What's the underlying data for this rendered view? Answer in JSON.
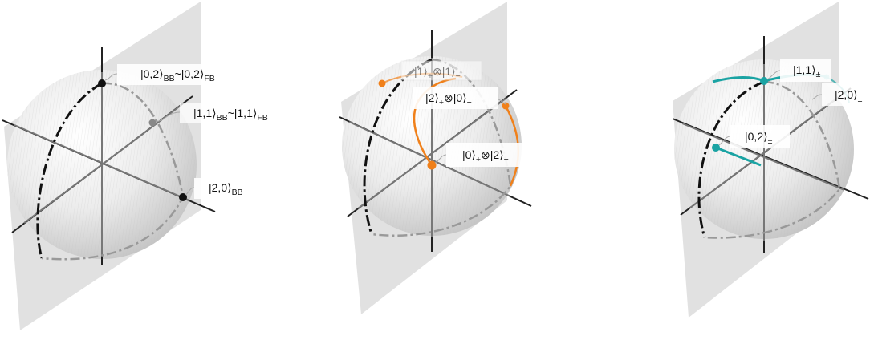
{
  "panels": [
    {
      "labels": {
        "a": {
          "main": "|0,2⟩",
          "sub": "BB",
          "main2": "~|0,2⟩",
          "sub2": "FB"
        },
        "b": {
          "main": "|1,1⟩",
          "sub": "BB",
          "main2": "~|1,1⟩",
          "sub2": "FB"
        },
        "c": {
          "main": "|2,0⟩",
          "sub": "BB"
        }
      },
      "colors": {
        "state": "#111111"
      }
    },
    {
      "labels": {
        "a": {
          "main": "|1⟩",
          "sub": "+",
          "main2": "⊗|1⟩",
          "sub2": "−"
        },
        "b": {
          "main": "|2⟩",
          "sub": "+",
          "main2": "⊗|0⟩",
          "sub2": "−"
        },
        "c": {
          "main": "|0⟩",
          "sub": "+",
          "main2": "⊗|2⟩",
          "sub2": "−"
        }
      },
      "colors": {
        "state": "#f0801a"
      }
    },
    {
      "labels": {
        "a": {
          "main": "|1,1⟩",
          "sub": "±"
        },
        "b": {
          "main": "|2,0⟩",
          "sub": "±"
        },
        "c": {
          "main": "|0,2⟩",
          "sub": "±"
        }
      },
      "colors": {
        "state": "#1aa3a3"
      }
    }
  ],
  "colors": {
    "sphere_shade": "#d6d6d6",
    "plane": "#dcdcdc",
    "axis": "#222222"
  }
}
